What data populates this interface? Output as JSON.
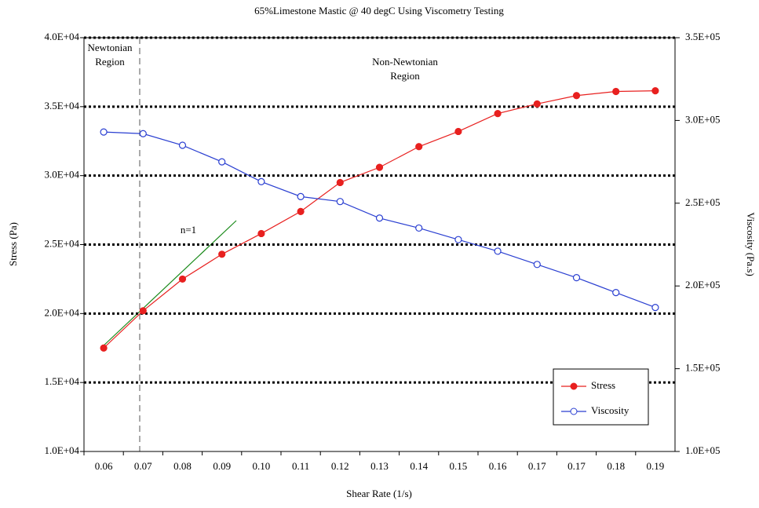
{
  "chart_data": {
    "type": "line",
    "title": "65%Limestone Mastic @ 40 degC Using Viscometry Testing",
    "x_label": "Shear Rate (1/s)",
    "y_label": "Stress (Pa)",
    "y2_label": "Viscosity (Pa.s)",
    "categories": [
      "0.06",
      "0.07",
      "0.08",
      "0.09",
      "0.10",
      "0.11",
      "0.12",
      "0.13",
      "0.14",
      "0.15",
      "0.16",
      "0.17",
      "0.17",
      "0.18",
      "0.19"
    ],
    "series": [
      {
        "name": "Stress",
        "color": "#e8201f",
        "marker": "filled",
        "values": [
          17500,
          20200,
          22500,
          24300,
          25800,
          27400,
          29500,
          30600,
          32100,
          33200,
          34500,
          35200,
          35800,
          36100,
          36150
        ]
      },
      {
        "name": "Viscosity",
        "color": "#2a3fd1",
        "marker": "open",
        "axis": "y2",
        "values": [
          293000,
          292000,
          285000,
          275000,
          263000,
          254000,
          251000,
          241000,
          235000,
          228000,
          221000,
          213000,
          205000,
          196000,
          187000
        ]
      }
    ],
    "ylim": [
      10000,
      40000
    ],
    "yticks": [
      {
        "value": 10000,
        "label": "1.0E+04"
      },
      {
        "value": 15000,
        "label": "1.5E+04"
      },
      {
        "value": 20000,
        "label": "2.0E+04"
      },
      {
        "value": 25000,
        "label": "2.5E+04"
      },
      {
        "value": 30000,
        "label": "3.0E+04"
      },
      {
        "value": 35000,
        "label": "3.5E+04"
      },
      {
        "value": 40000,
        "label": "4.0E+04"
      }
    ],
    "y2lim": [
      100000,
      350000
    ],
    "y2ticks": [
      {
        "value": 100000,
        "label": "1.0E+05"
      },
      {
        "value": 150000,
        "label": "1.5E+05"
      },
      {
        "value": 200000,
        "label": "2.0E+05"
      },
      {
        "value": 250000,
        "label": "2.5E+05"
      },
      {
        "value": 300000,
        "label": "3.0E+05"
      },
      {
        "value": 350000,
        "label": "3.5E+05"
      }
    ],
    "grid": true,
    "legend": "lower right",
    "annotations": [
      [
        "Newtonian",
        "Region"
      ],
      [
        "Non-Newtonian",
        "Region"
      ],
      [
        "n=1"
      ]
    ]
  }
}
